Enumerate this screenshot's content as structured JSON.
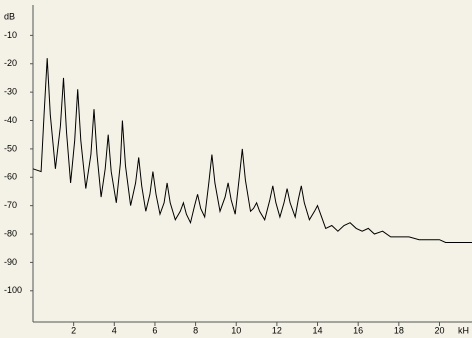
{
  "chart_data": {
    "type": "line",
    "y_label": "dB",
    "x_label": "kH",
    "x": [
      0,
      0.4,
      0.55,
      0.7,
      0.85,
      1.1,
      1.35,
      1.5,
      1.65,
      1.85,
      2.05,
      2.2,
      2.35,
      2.6,
      2.85,
      3.0,
      3.15,
      3.35,
      3.55,
      3.7,
      3.85,
      4.1,
      4.3,
      4.4,
      4.55,
      4.8,
      5.05,
      5.2,
      5.35,
      5.55,
      5.75,
      5.9,
      6.05,
      6.25,
      6.45,
      6.6,
      6.75,
      7.0,
      7.25,
      7.4,
      7.55,
      7.75,
      7.95,
      8.1,
      8.25,
      8.45,
      8.65,
      8.8,
      8.95,
      9.2,
      9.45,
      9.6,
      9.75,
      9.95,
      10.15,
      10.3,
      10.45,
      10.7,
      10.85,
      11.0,
      11.15,
      11.4,
      11.65,
      11.8,
      11.95,
      12.15,
      12.35,
      12.5,
      12.65,
      12.9,
      13.05,
      13.2,
      13.35,
      13.6,
      13.85,
      14.0,
      14.15,
      14.4,
      14.7,
      15.0,
      15.3,
      15.6,
      15.9,
      16.2,
      16.5,
      16.8,
      17.2,
      17.6,
      18.0,
      18.5,
      19.0,
      19.5,
      20.0,
      20.3,
      21.6
    ],
    "values": [
      -57,
      -58,
      -37,
      -18,
      -38,
      -57,
      -42,
      -25,
      -44,
      -62,
      -47,
      -29,
      -47,
      -64,
      -52,
      -36,
      -52,
      -67,
      -57,
      -45,
      -58,
      -69,
      -55,
      -40,
      -56,
      -70,
      -62,
      -53,
      -63,
      -72,
      -66,
      -58,
      -66,
      -73,
      -69,
      -62,
      -69,
      -75,
      -72,
      -69,
      -73,
      -76,
      -70,
      -66,
      -71,
      -74,
      -62,
      -52,
      -62,
      -72,
      -67,
      -62,
      -68,
      -73,
      -60,
      -50,
      -61,
      -72,
      -71,
      -69,
      -72,
      -75,
      -68,
      -63,
      -69,
      -74,
      -69,
      -64,
      -69,
      -74,
      -68,
      -63,
      -69,
      -75,
      -72,
      -70,
      -73,
      -78,
      -77,
      -79,
      -77,
      -76,
      -78,
      -79,
      -78,
      -80,
      -79,
      -81,
      -81,
      -81,
      -82,
      -82,
      -82,
      -83,
      -83
    ],
    "color": "#000000",
    "xlim": [
      0,
      21.6
    ],
    "xticks": [
      2,
      4,
      6,
      8,
      10,
      12,
      14,
      16,
      18,
      20
    ],
    "ylim": [
      -111,
      0
    ],
    "yticks": [
      -10,
      -20,
      -30,
      -40,
      -50,
      -60,
      -70,
      -80,
      -90,
      -100
    ]
  }
}
